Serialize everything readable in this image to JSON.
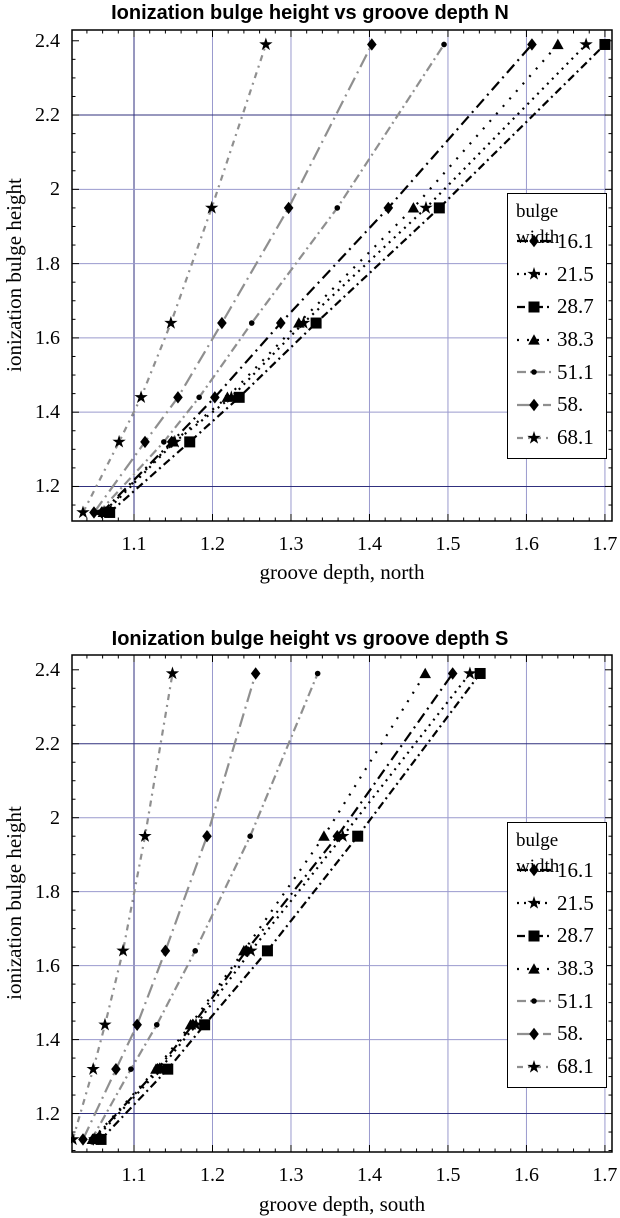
{
  "colors": {
    "grid_light": "#9a9ace",
    "grid_dark": "#30307e",
    "frame": "#000000",
    "marker": "#000000",
    "series_black": "#000000",
    "series_gray": "#8f8f8f"
  },
  "chart_data": [
    {
      "type": "line",
      "title": "Ionization bulge height vs groove depth N",
      "xlabel": "groove depth, north",
      "ylabel": "ionization bulge height",
      "legend_title": "bulge width",
      "legend_position": "right-inside",
      "xlim": [
        1.021,
        1.709
      ],
      "ylim": [
        1.107,
        2.429
      ],
      "xticks": {
        "values": [
          1.1,
          1.2,
          1.3,
          1.4,
          1.5,
          1.6,
          1.7
        ],
        "labels": [
          "1.1",
          "1.2",
          "1.3",
          "1.4",
          "1.5",
          "1.6",
          "1.7"
        ],
        "minor_step": 0.02
      },
      "yticks": {
        "values": [
          1.2,
          1.4,
          1.6,
          1.8,
          2.0,
          2.2,
          2.4
        ],
        "labels": [
          "1.2",
          "1.4",
          "1.6",
          "1.8",
          "2",
          "2.2",
          "2.4"
        ],
        "minor_step": 0.05
      },
      "gridlines": {
        "x": [
          1.1,
          1.2,
          1.3,
          1.4,
          1.5,
          1.6,
          1.7
        ],
        "y": [
          1.2,
          1.4,
          1.6,
          1.8,
          2.0,
          2.2
        ],
        "emphasized_x": [
          1.1
        ],
        "emphasized_y": [
          1.2,
          2.2
        ]
      },
      "bulge_heights": [
        1.13,
        1.32,
        1.44,
        1.64,
        1.95,
        2.39
      ],
      "series": [
        {
          "name": "16.1",
          "marker": "diamond",
          "color": "#000000",
          "dash": "11,5,2,5",
          "groove_depths": [
            1.059,
            1.148,
            1.203,
            1.287,
            1.424,
            1.607
          ]
        },
        {
          "name": "21.5",
          "marker": "star",
          "color": "#000000",
          "dash": "2,5",
          "groove_depths": [
            1.063,
            1.152,
            1.224,
            1.316,
            1.472,
            1.676
          ]
        },
        {
          "name": "28.7",
          "marker": "square",
          "color": "#000000",
          "dash": "8,4,2,4",
          "groove_depths": [
            1.069,
            1.171,
            1.234,
            1.332,
            1.489,
            1.7
          ]
        },
        {
          "name": "38.3",
          "marker": "triangle",
          "color": "#000000",
          "dash": "2,8",
          "groove_depths": [
            1.061,
            1.15,
            1.219,
            1.31,
            1.456,
            1.64
          ]
        },
        {
          "name": "51.1",
          "marker": "dot",
          "color": "#8f8f8f",
          "dash": "9,4,2,4",
          "groove_depths": [
            1.055,
            1.138,
            1.183,
            1.25,
            1.359,
            1.495
          ]
        },
        {
          "name": "58.",
          "marker": "diamond",
          "color": "#8f8f8f",
          "dash": "14,5,2,5",
          "groove_depths": [
            1.049,
            1.114,
            1.156,
            1.212,
            1.297,
            1.403
          ]
        },
        {
          "name": "68.1",
          "marker": "star",
          "color": "#8f8f8f",
          "dash": "6,5,2,5",
          "groove_depths": [
            1.035,
            1.081,
            1.109,
            1.147,
            1.199,
            1.268
          ]
        }
      ]
    },
    {
      "type": "line",
      "title": "Ionization bulge height vs groove depth S",
      "xlabel": "groove depth, south",
      "ylabel": "ionization bulge height",
      "legend_title": "bulge width",
      "legend_position": "right-inside",
      "xlim": [
        1.021,
        1.709
      ],
      "ylim": [
        1.096,
        2.44
      ],
      "xticks": {
        "values": [
          1.1,
          1.2,
          1.3,
          1.4,
          1.5,
          1.6,
          1.7
        ],
        "labels": [
          "1.1",
          "1.2",
          "1.3",
          "1.4",
          "1.5",
          "1.6",
          "1.7"
        ],
        "minor_step": 0.02
      },
      "yticks": {
        "values": [
          1.2,
          1.4,
          1.6,
          1.8,
          2.0,
          2.2,
          2.4
        ],
        "labels": [
          "1.2",
          "1.4",
          "1.6",
          "1.8",
          "2",
          "2.2",
          "2.4"
        ],
        "minor_step": 0.05
      },
      "gridlines": {
        "x": [
          1.1,
          1.2,
          1.3,
          1.4,
          1.5,
          1.6,
          1.7
        ],
        "y": [
          1.2,
          1.4,
          1.6,
          1.8,
          2.0,
          2.2
        ],
        "emphasized_x": [
          1.1
        ],
        "emphasized_y": [
          1.2,
          2.2
        ]
      },
      "bulge_heights": [
        1.13,
        1.32,
        1.44,
        1.64,
        1.95,
        2.39
      ],
      "series": [
        {
          "name": "16.1",
          "marker": "diamond",
          "color": "#000000",
          "dash": "11,5,2,5",
          "groove_depths": [
            1.048,
            1.13,
            1.175,
            1.243,
            1.359,
            1.506
          ]
        },
        {
          "name": "21.5",
          "marker": "star",
          "color": "#000000",
          "dash": "2,5",
          "groove_depths": [
            1.05,
            1.133,
            1.179,
            1.249,
            1.366,
            1.528
          ]
        },
        {
          "name": "28.7",
          "marker": "square",
          "color": "#000000",
          "dash": "8,4,2,4",
          "groove_depths": [
            1.058,
            1.143,
            1.19,
            1.27,
            1.385,
            1.541
          ]
        },
        {
          "name": "38.3",
          "marker": "triangle",
          "color": "#000000",
          "dash": "2,8",
          "groove_depths": [
            1.047,
            1.128,
            1.172,
            1.24,
            1.342,
            1.471
          ]
        },
        {
          "name": "51.1",
          "marker": "dot",
          "color": "#8f8f8f",
          "dash": "9,4,2,4",
          "groove_depths": [
            1.046,
            1.096,
            1.129,
            1.178,
            1.248,
            1.334
          ]
        },
        {
          "name": "58.",
          "marker": "diamond",
          "color": "#8f8f8f",
          "dash": "14,5,2,5",
          "groove_depths": [
            1.035,
            1.077,
            1.104,
            1.14,
            1.193,
            1.255
          ]
        },
        {
          "name": "68.1",
          "marker": "star",
          "color": "#8f8f8f",
          "dash": "6,5,2,5",
          "groove_depths": [
            1.022,
            1.048,
            1.063,
            1.086,
            1.114,
            1.149
          ]
        }
      ]
    }
  ]
}
